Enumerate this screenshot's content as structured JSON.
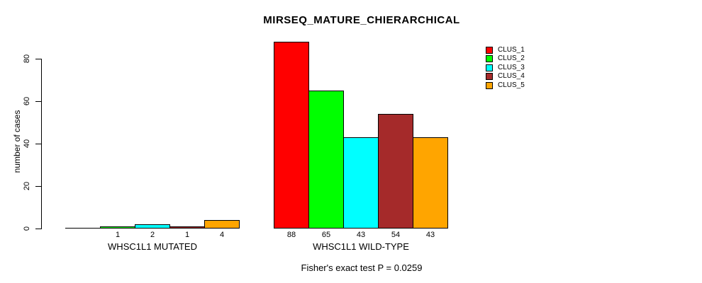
{
  "title": "MIRSEQ_MATURE_CHIERARCHICAL",
  "footer": "Fisher's exact test P = 0.0259",
  "chart_data": {
    "type": "bar",
    "title": "MIRSEQ_MATURE_CHIERARCHICAL",
    "xlabel": "",
    "ylabel": "number of cases",
    "ylim": [
      0,
      88
    ],
    "yticks": [
      0,
      20,
      40,
      60,
      80
    ],
    "grid": false,
    "legend_position": "top-right",
    "annotation": "Fisher's exact test P = 0.0259",
    "legend": [
      {
        "label": "CLUS_1",
        "color": "#FF0000"
      },
      {
        "label": "CLUS_2",
        "color": "#00FF00"
      },
      {
        "label": "CLUS_3",
        "color": "#00FFFF"
      },
      {
        "label": "CLUS_4",
        "color": "#A52A2A"
      },
      {
        "label": "CLUS_5",
        "color": "#FFA500"
      }
    ],
    "groups": [
      {
        "label": "WHSC1L1 MUTATED",
        "series": [
          "CLUS_1",
          "CLUS_2",
          "CLUS_3",
          "CLUS_4",
          "CLUS_5"
        ],
        "values": [
          0,
          1,
          2,
          1,
          4
        ],
        "bar_labels": [
          "",
          "1",
          "2",
          "1",
          "4"
        ]
      },
      {
        "label": "WHSC1L1 WILD-TYPE",
        "series": [
          "CLUS_1",
          "CLUS_2",
          "CLUS_3",
          "CLUS_4",
          "CLUS_5"
        ],
        "values": [
          88,
          65,
          43,
          54,
          43
        ],
        "bar_labels": [
          "88",
          "65",
          "43",
          "54",
          "43"
        ]
      }
    ]
  }
}
